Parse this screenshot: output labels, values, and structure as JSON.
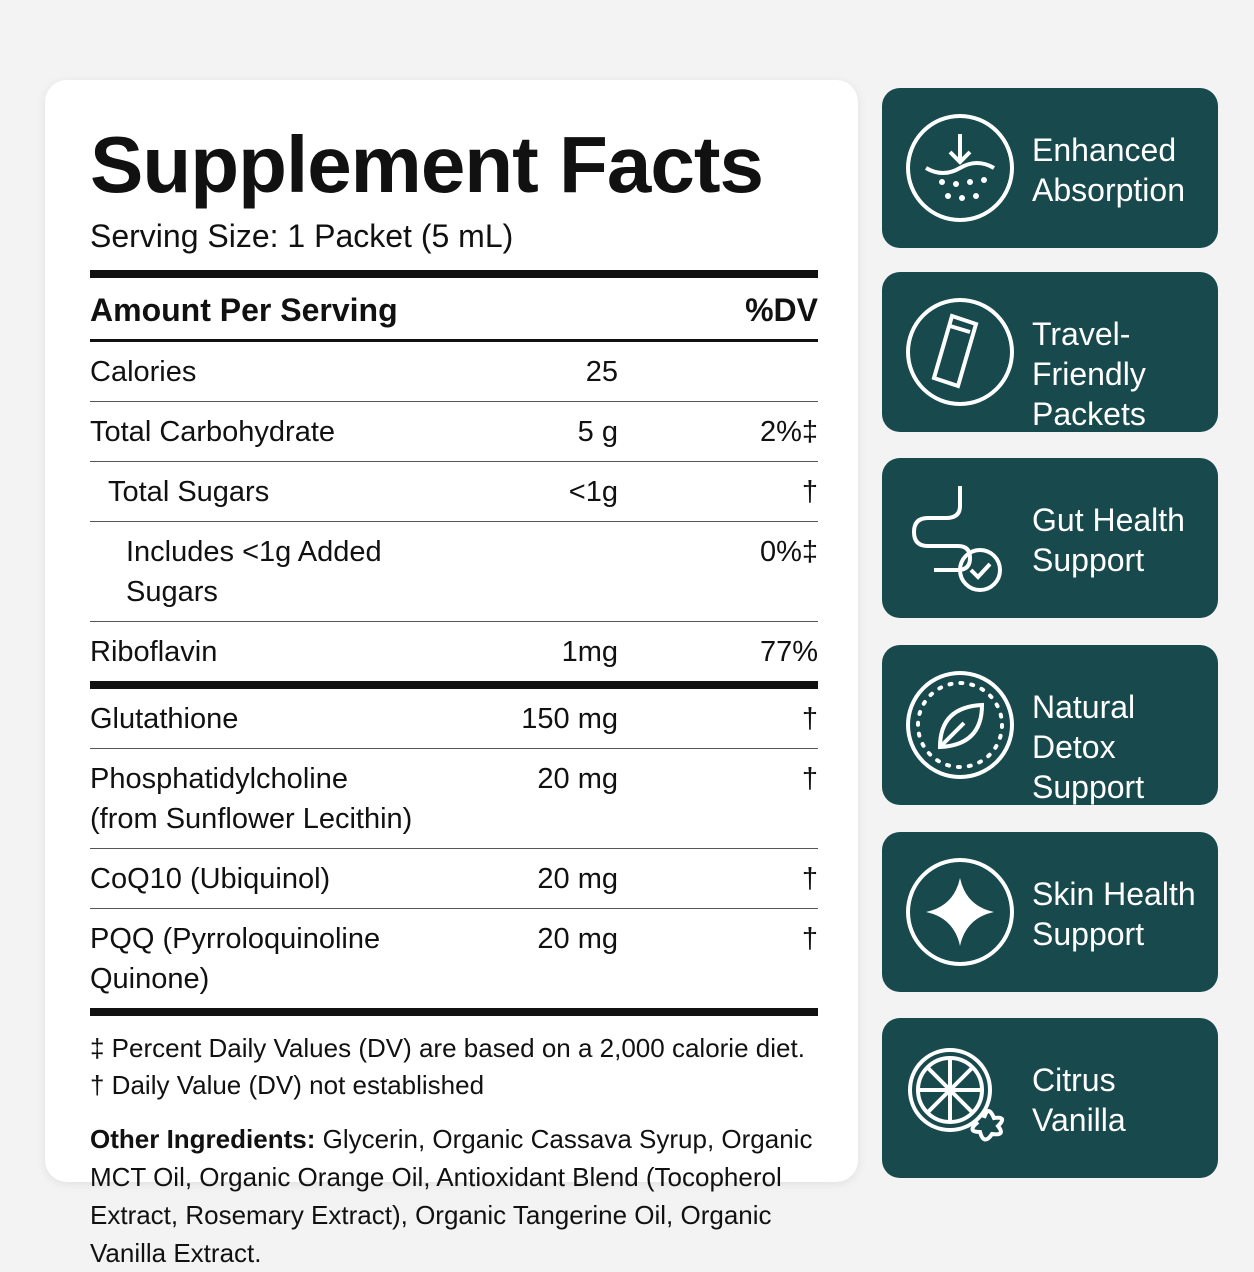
{
  "facts": {
    "title": "Supplement Facts",
    "serving_size": "Serving Size: 1 Packet (5 mL)",
    "header": {
      "amount": "Amount Per Serving",
      "dv": "%DV"
    },
    "sections": [
      {
        "rows": [
          {
            "name": "Calories",
            "amount": "25"
          },
          {
            "name": "Total Carbohydrate",
            "amount": "5 g",
            "dv": "2%‡"
          },
          {
            "name": "Total Sugars",
            "amount": "<1g",
            "dv": "†"
          },
          {
            "name": "Includes <1g Added Sugars",
            "dv": "0%‡"
          },
          {
            "name": "Riboflavin",
            "amount": "1mg",
            "dv": "77%"
          }
        ]
      },
      {
        "rows": [
          {
            "name": "Glutathione",
            "amount": "150 mg",
            "dv": "†"
          },
          {
            "name": "Phosphatidylcholine",
            "note": "(from Sunflower Lecithin)",
            "amount": "20 mg",
            "dv": "†"
          },
          {
            "name": "CoQ10 (Ubiquinol)",
            "amount": "20 mg",
            "dv": "†"
          },
          {
            "name": "PQQ (Pyrroloquinoline Quinone)",
            "amount": "20 mg",
            "dv": "†"
          }
        ]
      }
    ],
    "footnotes": [
      "‡ Percent Daily Values (DV) are based on a 2,000 calorie diet.",
      "† Daily Value (DV) not established"
    ],
    "other_ingredients": {
      "label": "Other Ingredients:",
      "text": "Glycerin, Organic Cassava Syrup, Organic MCT Oil, Organic Orange Oil, Antioxidant Blend (Tocopherol Extract, Rosemary Extract), Organic Tangerine Oil, Organic Vanilla Extract."
    }
  },
  "badges": [
    {
      "lines": [
        "Enhanced",
        "Absorption"
      ]
    },
    {
      "lines": [
        "Travel-Friendly",
        "Packets"
      ]
    },
    {
      "lines": [
        "Gut Health",
        "Support"
      ]
    },
    {
      "lines": [
        "Natural Detox",
        "Support"
      ]
    },
    {
      "lines": [
        "Skin Health",
        "Support"
      ]
    },
    {
      "lines": [
        "Citrus",
        "Vanilla"
      ]
    }
  ]
}
